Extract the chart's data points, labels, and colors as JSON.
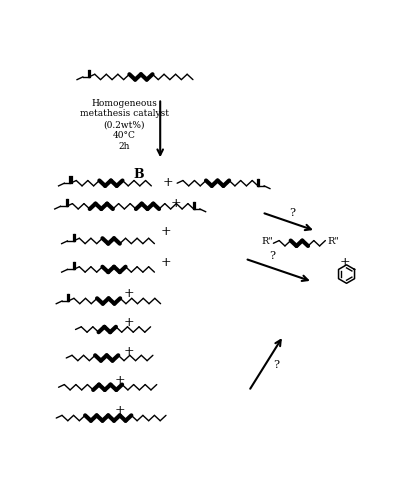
{
  "bg_color": "#ffffff",
  "catalyst_text": [
    "Homogeneous",
    "metathesis catalyst",
    "(0.2wt%)",
    "40°C",
    "2h"
  ],
  "lw": 1.0,
  "sw": 7.5,
  "amp": 3.5,
  "ester_lw_factor": 1.6
}
